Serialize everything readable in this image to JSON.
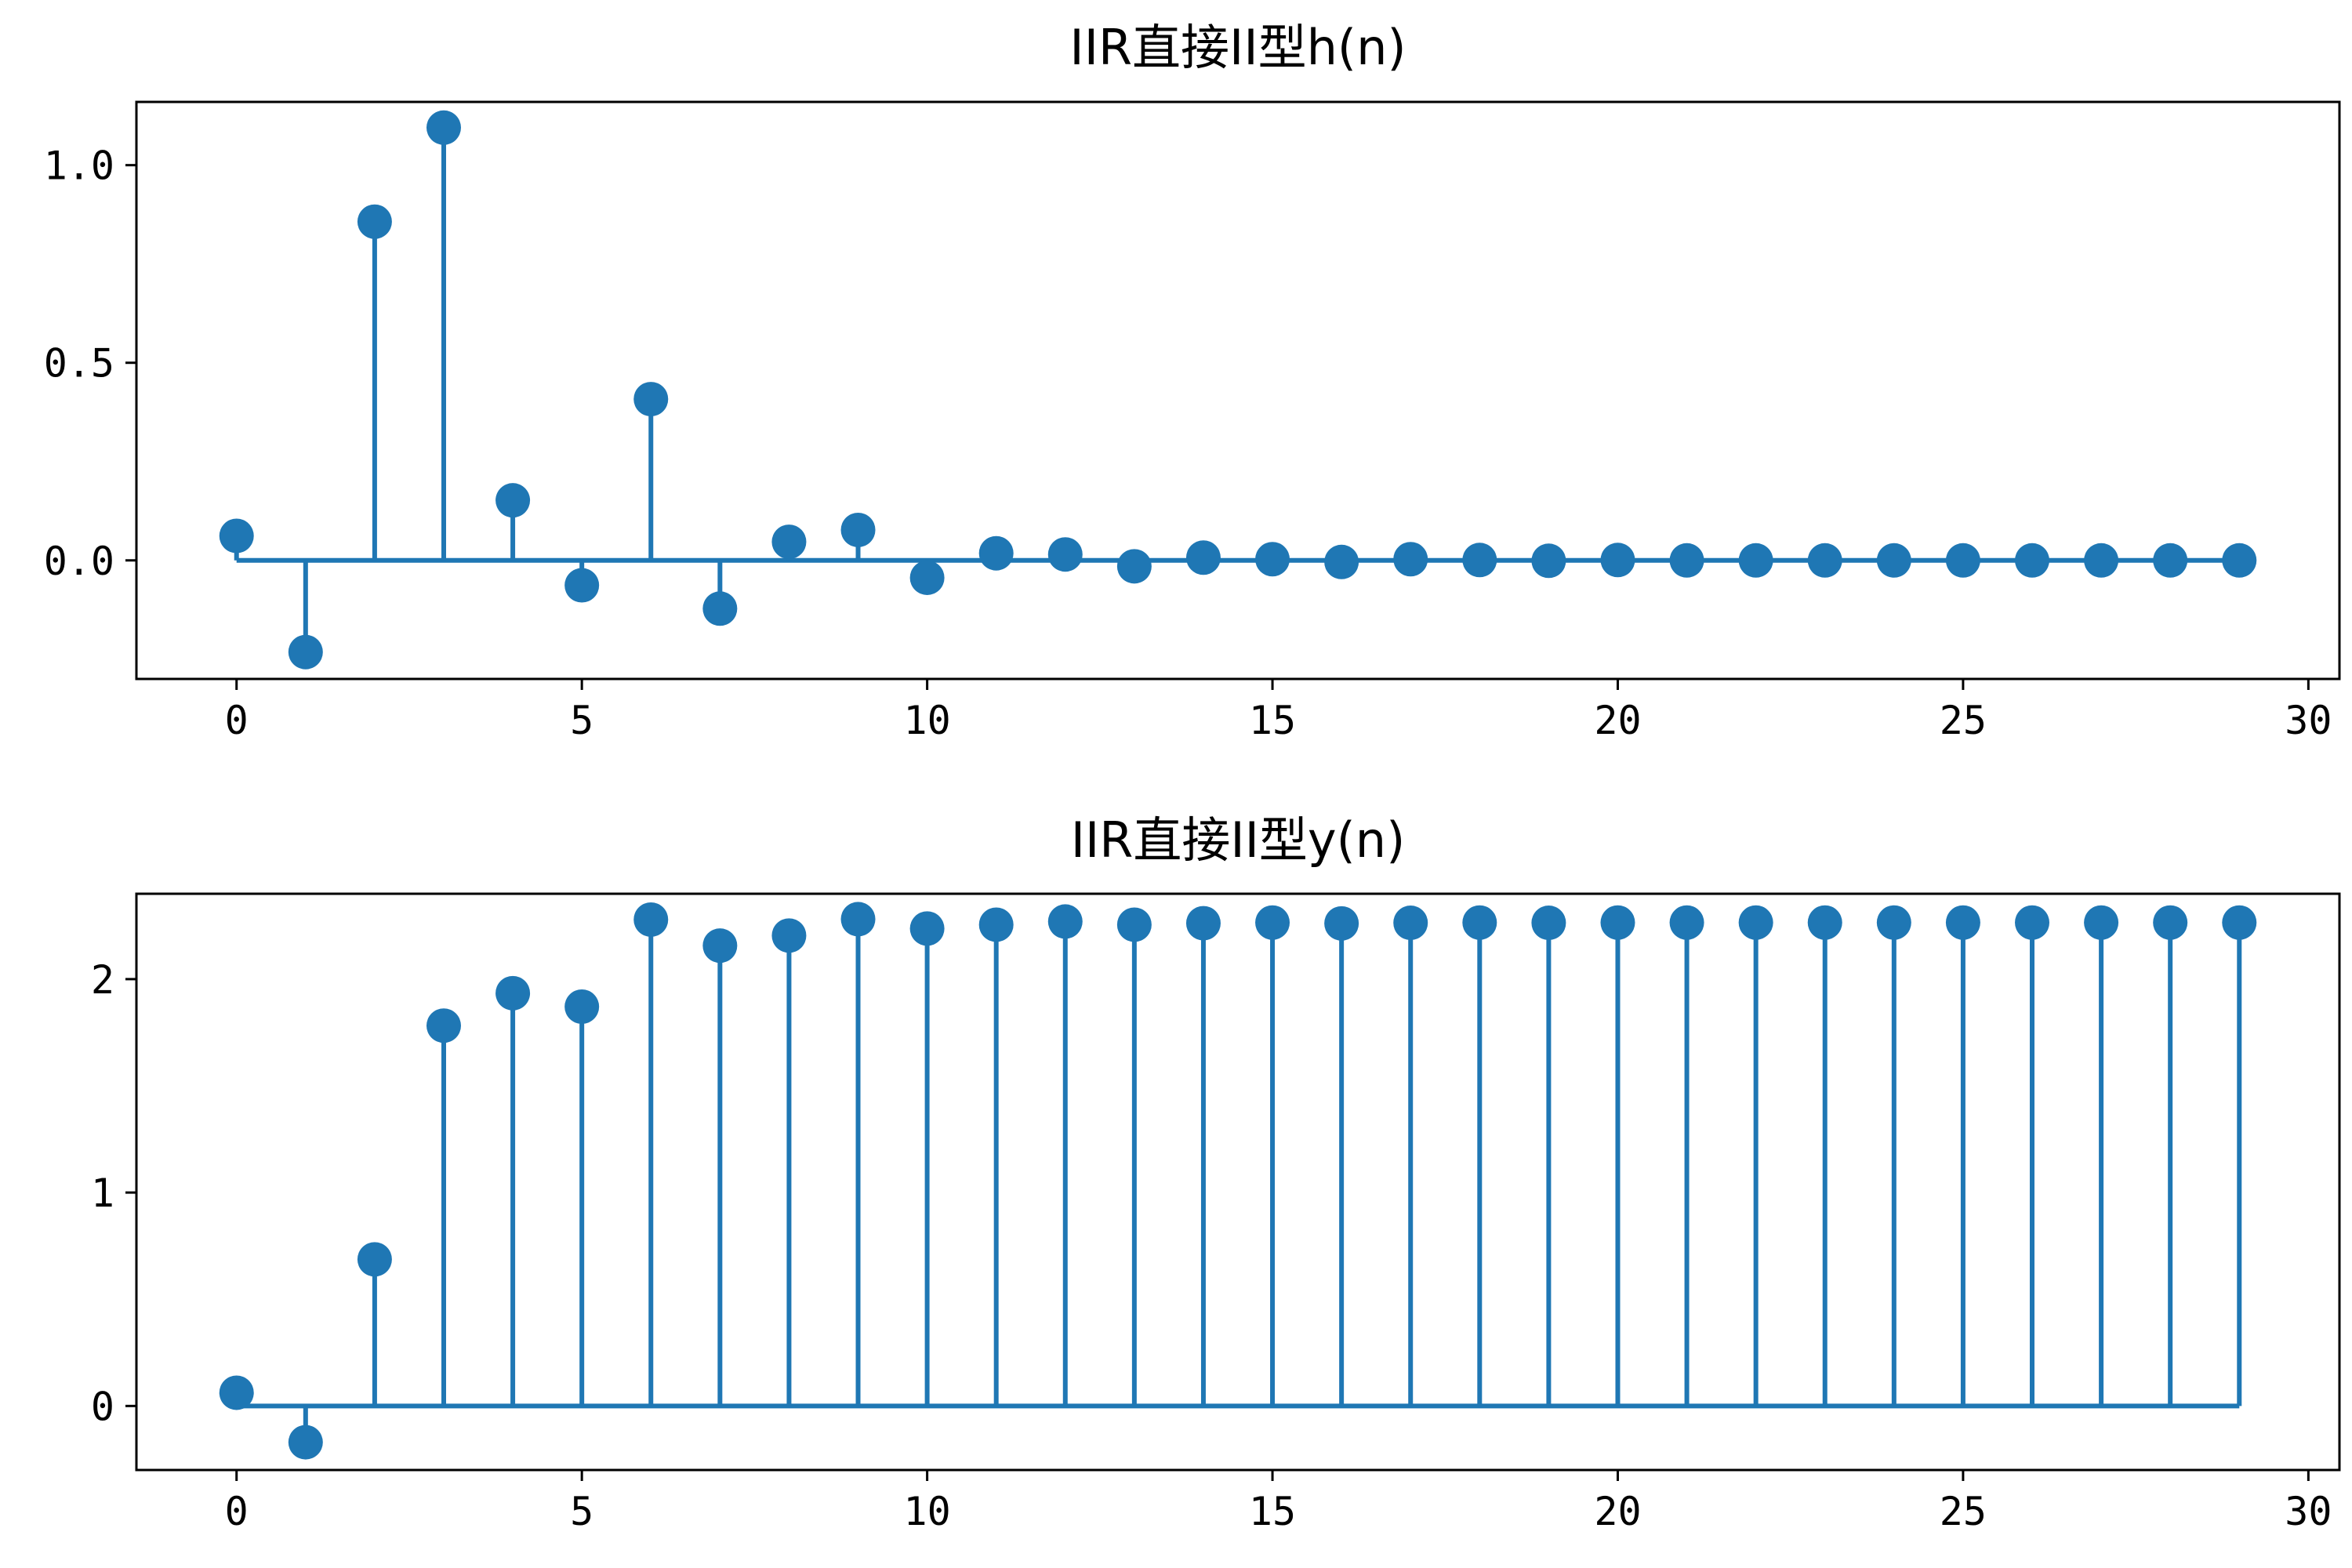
{
  "chart_data": [
    {
      "type": "stem",
      "title": "IIR直接II型h(n)",
      "xlabel": "",
      "ylabel": "",
      "xlim": [
        -1.45,
        30.45
      ],
      "ylim": [
        -0.3,
        1.16
      ],
      "xticks": [
        0,
        5,
        10,
        15,
        20,
        25,
        30
      ],
      "xtick_labels": [
        "0",
        "5",
        "10",
        "15",
        "20",
        "25",
        "30"
      ],
      "yticks": [
        0.0,
        0.5,
        1.0
      ],
      "ytick_labels": [
        "0.0",
        "0.5",
        "1.0"
      ],
      "grid": false,
      "color": "#1f77b4",
      "x": [
        0,
        1,
        2,
        3,
        4,
        5,
        6,
        7,
        8,
        9,
        10,
        11,
        12,
        13,
        14,
        15,
        16,
        17,
        18,
        19,
        20,
        21,
        22,
        23,
        24,
        25,
        26,
        27,
        28,
        29
      ],
      "values": [
        0.062,
        -0.232,
        0.857,
        1.095,
        0.152,
        -0.063,
        0.408,
        -0.122,
        0.047,
        0.077,
        -0.044,
        0.018,
        0.015,
        -0.015,
        0.007,
        0.003,
        -0.004,
        0.003,
        0.001,
        -0.001,
        0.001,
        0.0,
        0.0,
        0.0,
        0.0,
        0.0,
        0.0,
        0.0,
        0.0,
        0.0
      ]
    },
    {
      "type": "stem",
      "title": "IIR直接II型y(n)",
      "xlabel": "",
      "ylabel": "",
      "xlim": [
        -1.45,
        30.45
      ],
      "ylim": [
        -0.3,
        2.4
      ],
      "xticks": [
        0,
        5,
        10,
        15,
        20,
        25,
        30
      ],
      "xtick_labels": [
        "0",
        "5",
        "10",
        "15",
        "20",
        "25",
        "30"
      ],
      "yticks": [
        0,
        1,
        2
      ],
      "ytick_labels": [
        "0",
        "1",
        "2"
      ],
      "grid": false,
      "color": "#1f77b4",
      "x": [
        0,
        1,
        2,
        3,
        4,
        5,
        6,
        7,
        8,
        9,
        10,
        11,
        12,
        13,
        14,
        15,
        16,
        17,
        18,
        19,
        20,
        21,
        22,
        23,
        24,
        25,
        26,
        27,
        28,
        29
      ],
      "values": [
        0.062,
        -0.17,
        0.687,
        1.782,
        1.934,
        1.871,
        2.279,
        2.157,
        2.204,
        2.281,
        2.237,
        2.255,
        2.27,
        2.255,
        2.262,
        2.265,
        2.261,
        2.264,
        2.265,
        2.264,
        2.265,
        2.265,
        2.265,
        2.265,
        2.265,
        2.265,
        2.265,
        2.265,
        2.265,
        2.265
      ]
    }
  ]
}
